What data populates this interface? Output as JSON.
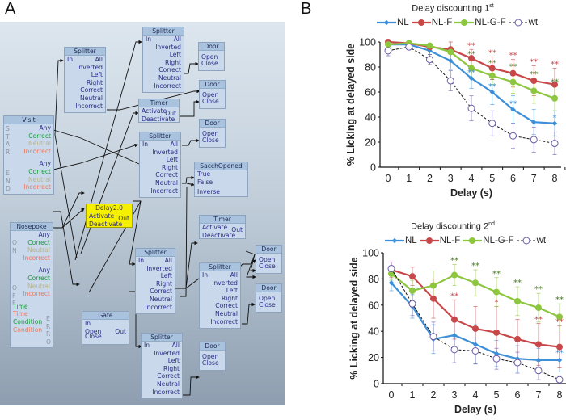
{
  "panel_a": {
    "label": "A",
    "nodes": {
      "visit": {
        "title": "Visit",
        "start_letters": [
          "S",
          "T",
          "A",
          "R"
        ],
        "end_letters": [
          "E",
          "N",
          "D"
        ],
        "start_ports": [
          "Any",
          "Correct",
          "Neutral",
          "Incorrect"
        ],
        "end_ports": [
          "Any",
          "Correct",
          "Neutral",
          "Incorrect"
        ]
      },
      "nosepoke": {
        "title": "Nosepoke",
        "on_letters": [
          "O",
          "N"
        ],
        "off_letters": [
          "O",
          "F",
          "F"
        ],
        "error_letters": [
          "E",
          "R",
          "R",
          "O"
        ],
        "on_ports": [
          "Any",
          "Correct",
          "Neutral",
          "Incorrect"
        ],
        "off_ports": [
          "Any",
          "Correct",
          "Neutral",
          "Incorrect"
        ],
        "error_ports": [
          "Time",
          "Time",
          "Condition",
          "Condition"
        ]
      },
      "splitter_ports": [
        "All",
        "Inverted",
        "Left",
        "Right",
        "Correct",
        "Neutral",
        "Incorrect"
      ],
      "splitter_title": "Splitter",
      "splitter_in": "In",
      "door": {
        "title": "Door",
        "ports": [
          "Open",
          "Close"
        ]
      },
      "timer": {
        "title": "Timer",
        "ports": [
          "Activate",
          "Deactivate"
        ],
        "out": "Out"
      },
      "delay": {
        "title": "Delay2.0",
        "ports": [
          "Activate",
          "Deactivate"
        ],
        "out": "Out"
      },
      "gate": {
        "title": "Gate",
        "ports": [
          "In",
          "Open",
          "Close"
        ],
        "out": "Out"
      },
      "sacch": {
        "title": "SacchOpened",
        "ports": [
          "True",
          "False",
          "Inverse"
        ]
      }
    }
  },
  "panel_b": {
    "label": "B"
  },
  "chart_data": [
    {
      "type": "line",
      "title": "Delay discounting 1",
      "title_sup": "st",
      "xlabel": "Delay (s)",
      "ylabel": "% Licking at delayed side",
      "ylim": [
        0,
        100
      ],
      "yticks": [
        0,
        20,
        40,
        60,
        80,
        100
      ],
      "x": [
        0,
        1,
        2,
        3,
        4,
        5,
        6,
        7,
        8
      ],
      "legend_position": "top",
      "series": [
        {
          "name": "NL",
          "color": "#3e8fd8",
          "marker": "diamond",
          "values": [
            98,
            98,
            93,
            85,
            71,
            60,
            46,
            36,
            35
          ],
          "errors": [
            2,
            1,
            3,
            7,
            8,
            10,
            11,
            10,
            10
          ],
          "sig": [
            "",
            "",
            "",
            "",
            "**",
            "**",
            "**",
            "",
            "*"
          ]
        },
        {
          "name": "NL-F",
          "color": "#c8484a",
          "marker": "circle",
          "values": [
            100,
            99,
            96,
            94,
            87,
            79,
            75,
            69,
            66
          ],
          "errors": [
            1,
            1,
            2,
            6,
            7,
            9,
            11,
            12,
            13
          ],
          "sig": [
            "",
            "",
            "",
            "",
            "**",
            "**",
            "**",
            "**",
            "**"
          ]
        },
        {
          "name": "NL-G-F",
          "color": "#8dc63f",
          "marker": "circle",
          "values": [
            98,
            99,
            97,
            92,
            79,
            73,
            68,
            61,
            55
          ],
          "errors": [
            2,
            1,
            2,
            4,
            8,
            7,
            9,
            10,
            10
          ],
          "sig": [
            "",
            "",
            "",
            "",
            "**",
            "**",
            "**",
            "**",
            "**"
          ]
        },
        {
          "name": "wt",
          "color": "#6a5aa8",
          "marker": "open-circle",
          "dashed": true,
          "values": [
            93,
            96,
            86,
            69,
            47,
            35,
            25,
            22,
            19
          ],
          "errors": [
            4,
            2,
            4,
            8,
            10,
            10,
            10,
            10,
            9
          ],
          "sig": [
            "",
            "",
            "",
            "",
            "",
            "",
            "",
            "",
            ""
          ]
        }
      ]
    },
    {
      "type": "line",
      "title": "Delay discounting 2",
      "title_sup": "nd",
      "xlabel": "Delay (s)",
      "ylabel": "% Licking at delayed side",
      "ylim": [
        0,
        100
      ],
      "yticks": [
        0,
        20,
        40,
        60,
        80,
        100
      ],
      "x": [
        0,
        1,
        2,
        3,
        4,
        5,
        6,
        7,
        8
      ],
      "legend_position": "top",
      "series": [
        {
          "name": "NL",
          "color": "#3e8fd8",
          "marker": "diamond",
          "values": [
            77,
            59,
            34,
            37,
            30,
            23,
            19,
            18,
            18
          ],
          "errors": [
            6,
            9,
            11,
            10,
            15,
            10,
            10,
            9,
            9
          ],
          "sig": [
            "",
            "",
            "",
            "",
            "",
            "",
            "",
            "",
            "**"
          ]
        },
        {
          "name": "NL-F",
          "color": "#c8484a",
          "marker": "circle",
          "values": [
            87,
            82,
            65,
            49,
            42,
            39,
            34,
            30,
            28
          ],
          "errors": [
            6,
            7,
            15,
            15,
            17,
            20,
            15,
            16,
            16
          ],
          "sig": [
            "",
            "",
            "",
            "**",
            "",
            "*",
            "",
            "**",
            "**"
          ]
        },
        {
          "name": "NL-G-F",
          "color": "#8dc63f",
          "marker": "circle",
          "values": [
            84,
            71,
            75,
            83,
            77,
            70,
            63,
            58,
            51
          ],
          "errors": [
            5,
            8,
            11,
            8,
            10,
            11,
            11,
            11,
            10
          ],
          "sig": [
            "",
            "",
            "",
            "**",
            "**",
            "**",
            "**",
            "**",
            "**"
          ]
        },
        {
          "name": "wt",
          "color": "#6a5aa8",
          "marker": "open-circle",
          "dashed": true,
          "values": [
            88,
            61,
            36,
            26,
            25,
            19,
            16,
            10,
            3
          ],
          "errors": [
            5,
            9,
            11,
            10,
            10,
            8,
            8,
            7,
            3
          ],
          "sig": [
            "",
            "",
            "",
            "",
            "",
            "",
            "",
            "",
            ""
          ]
        }
      ]
    }
  ]
}
